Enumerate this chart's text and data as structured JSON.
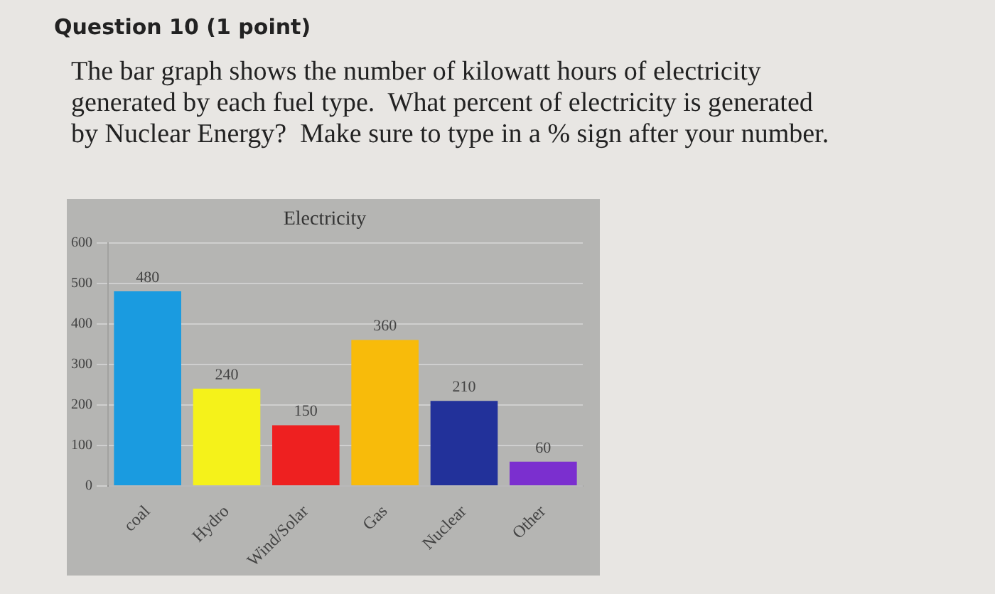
{
  "chart_data": {
    "type": "bar",
    "title": "Electricity",
    "categories": [
      "coal",
      "Hydro",
      "Wind/Solar",
      "Gas",
      "Nuclear",
      "Other"
    ],
    "values": [
      480,
      240,
      150,
      360,
      210,
      60
    ],
    "colors": [
      "#1a9be0",
      "#f5f21a",
      "#ee2020",
      "#f8bb0a",
      "#22319a",
      "#7b2fcf"
    ],
    "ylim": [
      0,
      600
    ],
    "yticks": [
      0,
      100,
      200,
      300,
      400,
      500,
      600
    ],
    "grid": "y",
    "legend": false,
    "data_labels": true,
    "annotations": [
      "Question 10 (1 point)",
      "The bar graph shows the number of kilowatt hours of electricity generated by each fuel type.  What percent of electricity is generated by Nuclear Energy?  Make sure to type in a % sign after your number."
    ]
  }
}
